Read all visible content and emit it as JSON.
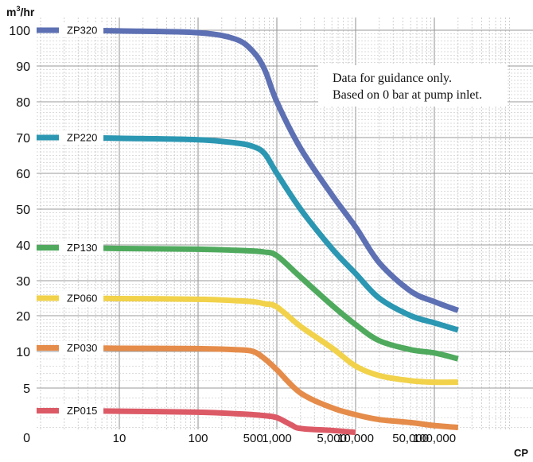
{
  "chart_data": {
    "type": "line",
    "title": "",
    "ylabel": "m³/hr",
    "xlabel": "CP",
    "xscale": "log",
    "grid": true,
    "legend_position": "left, beside each curve",
    "annotation": [
      "Data for guidance only.",
      "Based on 0 bar at pump inlet."
    ],
    "y_ticks": [
      {
        "value": 100,
        "label": "100"
      },
      {
        "value": 90,
        "label": "90"
      },
      {
        "value": 80,
        "label": "80"
      },
      {
        "value": 70,
        "label": "70"
      },
      {
        "value": 60,
        "label": "60"
      },
      {
        "value": 50,
        "label": "50"
      },
      {
        "value": 40,
        "label": "40"
      },
      {
        "value": 30,
        "label": "30"
      },
      {
        "value": 20,
        "label": "20"
      },
      {
        "value": 10,
        "label": "10"
      },
      {
        "value": 5,
        "label": "5"
      },
      {
        "value": 0,
        "label": "0"
      }
    ],
    "x_ticks": [
      {
        "value": 10,
        "label": "10"
      },
      {
        "value": 100,
        "label": "100"
      },
      {
        "value": 500,
        "label": "500"
      },
      {
        "value": 1000,
        "label": "1,000"
      },
      {
        "value": 5000,
        "label": "5,000"
      },
      {
        "value": 10000,
        "label": "10,000"
      },
      {
        "value": 50000,
        "label": "50,000"
      },
      {
        "value": 100000,
        "label": "100,000"
      }
    ],
    "series": [
      {
        "name": "ZP320",
        "color": "#5d70b3",
        "x": [
          1,
          10,
          100,
          300,
          500,
          700,
          1000,
          2000,
          5000,
          10000,
          20000,
          50000,
          100000,
          200000
        ],
        "y": [
          100,
          99.8,
          99.3,
          97.5,
          94,
          89,
          80,
          67,
          54,
          45,
          35,
          27,
          24,
          21.5
        ]
      },
      {
        "name": "ZP220",
        "color": "#2b97b2",
        "x": [
          1,
          10,
          100,
          300,
          500,
          700,
          1000,
          2000,
          5000,
          10000,
          20000,
          50000,
          100000,
          200000
        ],
        "y": [
          70,
          69.8,
          69.4,
          68.5,
          67.5,
          65.5,
          60,
          50,
          39,
          32,
          25,
          20,
          18,
          16
        ]
      },
      {
        "name": "ZP130",
        "color": "#4faa5e",
        "x": [
          1,
          10,
          100,
          300,
          500,
          700,
          1000,
          2000,
          5000,
          10000,
          20000,
          50000,
          100000,
          200000
        ],
        "y": [
          39.2,
          39,
          38.8,
          38.5,
          38.3,
          38,
          37,
          31,
          23,
          17.5,
          13,
          10.5,
          9.8,
          9
        ]
      },
      {
        "name": "ZP060",
        "color": "#f1d24a",
        "x": [
          1,
          10,
          100,
          300,
          500,
          700,
          1000,
          2000,
          5000,
          10000,
          20000,
          50000,
          100000,
          200000
        ],
        "y": [
          25,
          24.9,
          24.7,
          24.3,
          24,
          23.4,
          22.5,
          17,
          11,
          8,
          6.7,
          6,
          5.8,
          5.8
        ]
      },
      {
        "name": "ZP030",
        "color": "#e58c4a",
        "x": [
          1,
          10,
          100,
          300,
          500,
          700,
          1000,
          2000,
          5000,
          10000,
          20000,
          50000,
          100000,
          200000
        ],
        "y": [
          11,
          10.9,
          10.8,
          10.5,
          10,
          9,
          7.5,
          4.5,
          3,
          2.3,
          1.8,
          1.5,
          1.2,
          1
        ]
      },
      {
        "name": "ZP015",
        "color": "#dc5a66",
        "x": [
          1,
          10,
          100,
          300,
          500,
          700,
          1000,
          1500,
          2000,
          5000,
          10000
        ],
        "y": [
          2.7,
          2.65,
          2.55,
          2.4,
          2.3,
          2.2,
          2.0,
          1.3,
          0.9,
          0.7,
          0.5
        ]
      }
    ]
  }
}
